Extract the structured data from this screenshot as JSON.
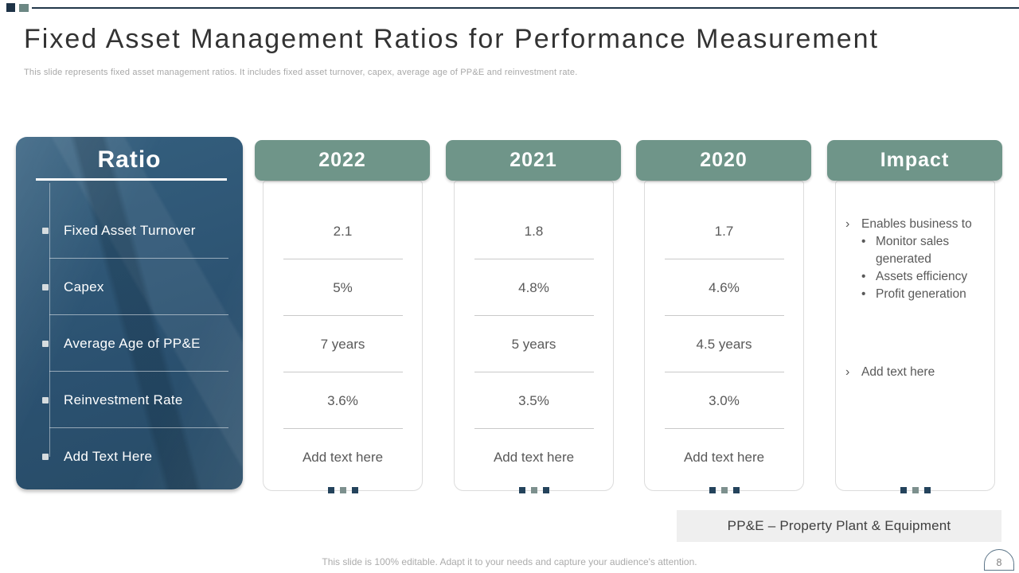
{
  "slide": {
    "title": "Fixed Asset Management Ratios for Performance Measurement",
    "subtitle": "This slide represents fixed asset management ratios. It includes fixed asset turnover, capex, average age of PP&E and reinvestment rate.",
    "footer": "This slide is 100% editable. Adapt it to your needs and capture your audience's attention.",
    "note": "PP&E – Property Plant & Equipment",
    "page_number": "8"
  },
  "icons": {
    "chevron_bullet": "›",
    "dot_bullet": "•"
  },
  "colors": {
    "accent_teal": "#6F9589",
    "panel_navy": "#2E5878",
    "top_line_navy": "#22384A",
    "dot_navy": "#24435C",
    "dot_gray": "#7D908E"
  },
  "table": {
    "ratio_header": "Ratio",
    "ratios": [
      "Fixed Asset Turnover",
      "Capex",
      "Average Age of PP&E",
      "Reinvestment Rate",
      "Add Text Here"
    ],
    "columns": [
      {
        "header": "2022",
        "values": [
          "2.1",
          "5%",
          "7 years",
          "3.6%",
          "Add text here"
        ]
      },
      {
        "header": "2021",
        "values": [
          "1.8",
          "4.8%",
          "5 years",
          "3.5%",
          "Add text here"
        ]
      },
      {
        "header": "2020",
        "values": [
          "1.7",
          "4.6%",
          "4.5 years",
          "3.0%",
          "Add text here"
        ]
      }
    ],
    "impact": {
      "header": "Impact",
      "items": [
        {
          "text": "Enables business to",
          "subitems": [
            "Monitor sales generated",
            "Assets efficiency",
            "Profit generation"
          ]
        },
        {
          "text": "Add text here",
          "subitems": []
        }
      ]
    }
  }
}
